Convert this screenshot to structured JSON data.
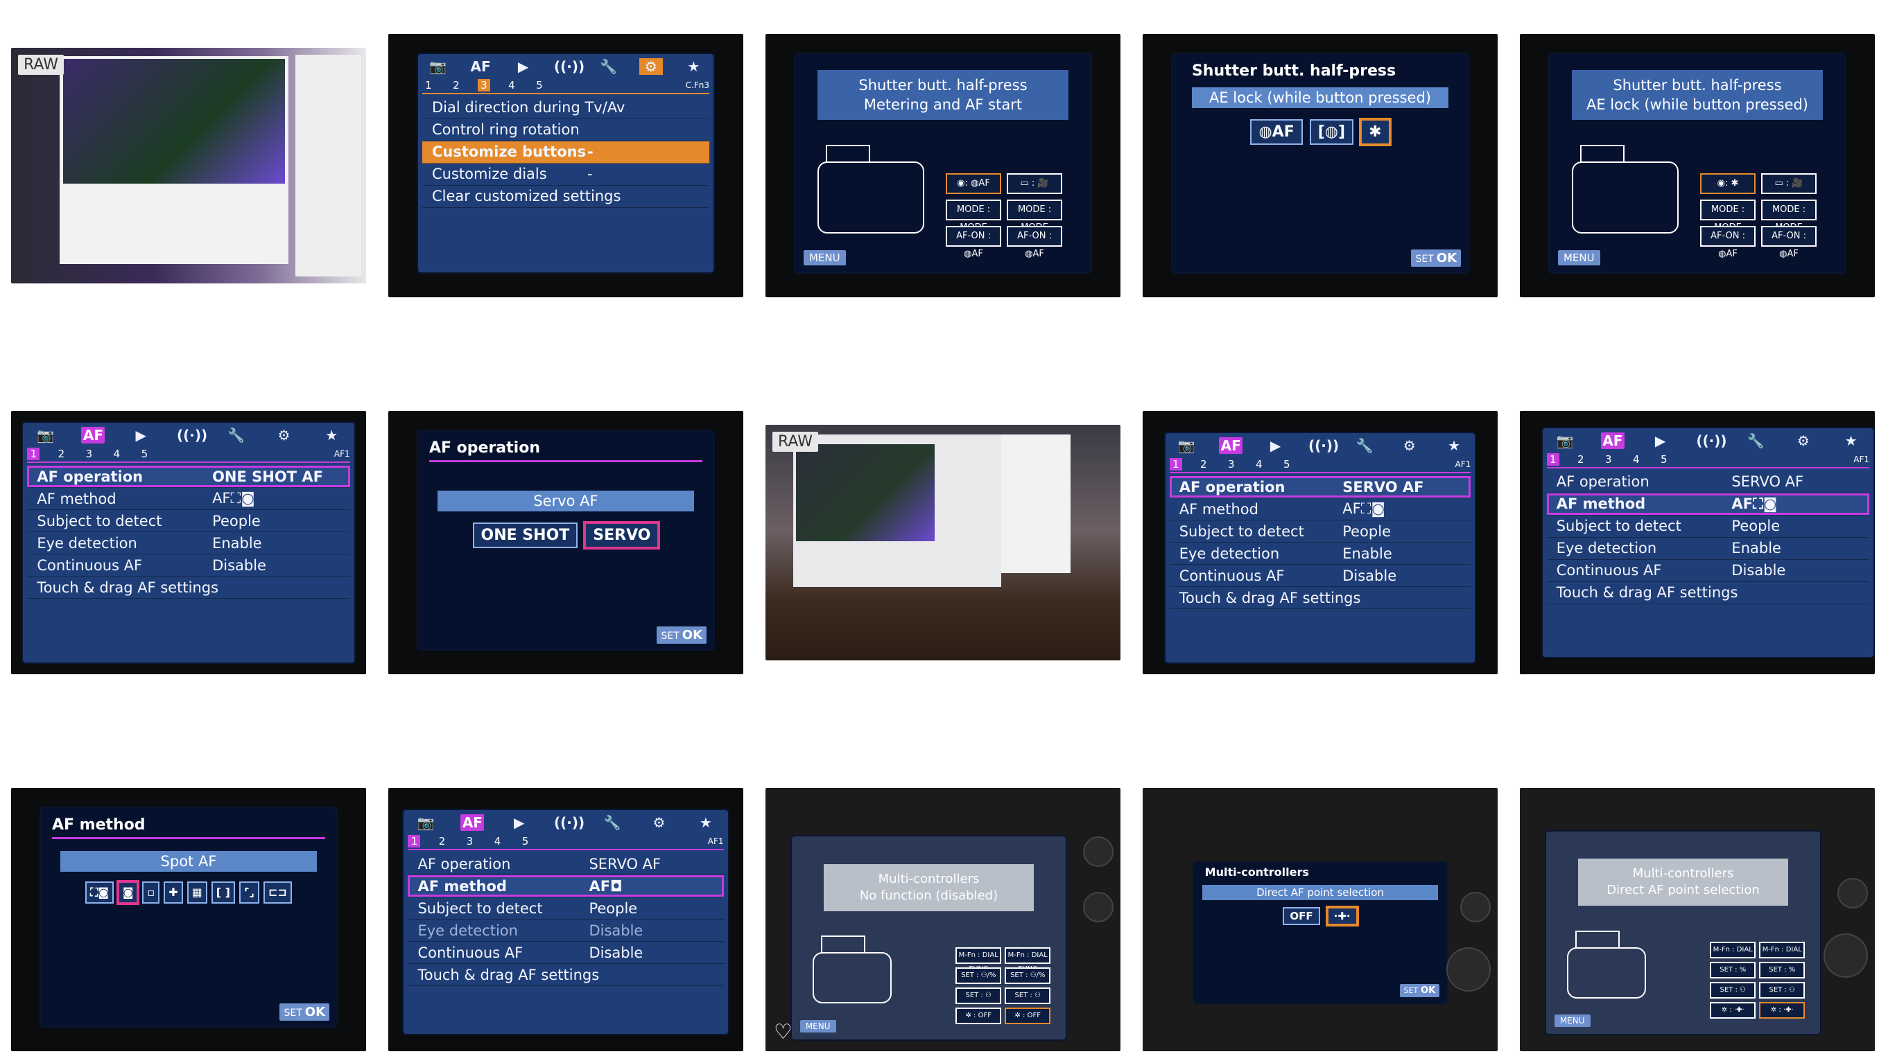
{
  "tiles": {
    "t1": {
      "badge": "RAW"
    },
    "t2": {
      "tabs": [
        "📷",
        "AF",
        "▶",
        "((·))",
        "🔧",
        "⚙",
        "★"
      ],
      "subtabs": [
        "1",
        "2",
        "3",
        "4",
        "5"
      ],
      "code": "C.Fn3",
      "rows": [
        "Dial direction during Tv/Av",
        "Control ring rotation",
        "Customize buttons",
        "Customize dials",
        "Clear customized settings"
      ],
      "row_values": [
        "",
        "",
        "-",
        "-",
        ""
      ]
    },
    "t3": {
      "banner_l1": "Shutter butt. half-press",
      "banner_l2": "Metering and AF start",
      "menu": "MENU",
      "cells": [
        "◉: ◍AF",
        "▭ : 🎥",
        "MODE : MODE",
        "MODE : MODE",
        "AF-ON : ◍AF",
        "AF-ON : ◍AF"
      ]
    },
    "t4": {
      "title": "Shutter butt. half-press",
      "value": "AE lock (while button pressed)",
      "opts": [
        "◍AF",
        "[◍]",
        "✱"
      ],
      "set": "SET",
      "ok": "OK"
    },
    "t5": {
      "banner_l1": "Shutter butt. half-press",
      "banner_l2": "AE lock (while button pressed)",
      "menu": "MENU",
      "cells": [
        "◉: ✱",
        "▭ : 🎥",
        "MODE : MODE",
        "MODE : MODE",
        "AF-ON : ◍AF",
        "AF-ON : ◍AF"
      ]
    },
    "af_tabs": [
      "📷",
      "AF",
      "▶",
      "((·))",
      "🔧",
      "⚙",
      "★"
    ],
    "af_sub": [
      "1",
      "2",
      "3",
      "4",
      "5"
    ],
    "af_code": "AF1",
    "t6": {
      "rows": [
        [
          "AF operation",
          "ONE SHOT AF"
        ],
        [
          "AF method",
          "AF⛶◙"
        ],
        [
          "Subject to detect",
          "People"
        ],
        [
          "Eye detection",
          "Enable"
        ],
        [
          "Continuous AF",
          "Disable"
        ],
        [
          "Touch & drag AF settings",
          ""
        ]
      ]
    },
    "t7": {
      "title": "AF operation",
      "value": "Servo AF",
      "opts": [
        "ONE SHOT",
        "SERVO"
      ],
      "set": "SET",
      "ok": "OK"
    },
    "t8": {
      "badge": "RAW"
    },
    "t9": {
      "rows": [
        [
          "AF operation",
          "SERVO AF"
        ],
        [
          "AF method",
          "AF⛶◙"
        ],
        [
          "Subject to detect",
          "People"
        ],
        [
          "Eye detection",
          "Enable"
        ],
        [
          "Continuous AF",
          "Disable"
        ],
        [
          "Touch & drag AF settings",
          ""
        ]
      ]
    },
    "t10": {
      "rows": [
        [
          "AF operation",
          "SERVO AF"
        ],
        [
          "AF method",
          "AF⛶◙"
        ],
        [
          "Subject to detect",
          "People"
        ],
        [
          "Eye detection",
          "Enable"
        ],
        [
          "Continuous AF",
          "Disable"
        ],
        [
          "Touch & drag AF settings",
          ""
        ]
      ]
    },
    "t11": {
      "title": "AF method",
      "value": "Spot AF",
      "opts": [
        "⛶◙",
        "◙",
        "▫",
        "✚",
        "▦",
        "[ ]",
        "⌜⌟",
        "⊏⊐"
      ],
      "set": "SET",
      "ok": "OK"
    },
    "t12": {
      "rows": [
        [
          "AF operation",
          "SERVO AF"
        ],
        [
          "AF method",
          "AF◘"
        ],
        [
          "Subject to detect",
          "People"
        ],
        [
          "Eye detection",
          "Disable"
        ],
        [
          "Continuous AF",
          "Disable"
        ],
        [
          "Touch & drag AF settings",
          ""
        ]
      ]
    },
    "t13": {
      "banner_l1": "Multi-controllers",
      "banner_l2": "No function (disabled)",
      "menu": "MENU",
      "cells": [
        "M-Fn : DIAL FUNC",
        "M-Fn : DIAL FUNC",
        "SET : ⚇/%",
        "SET : ⚇/%",
        "SET : ⚇",
        "SET : ⚇",
        "✲ : OFF",
        "✲ : OFF"
      ]
    },
    "t14": {
      "title": "Multi-controllers",
      "value": "Direct AF point selection",
      "opts": [
        "OFF",
        "·✚·"
      ],
      "set": "SET",
      "ok": "OK"
    },
    "t15": {
      "banner_l1": "Multi-controllers",
      "banner_l2": "Direct AF point selection",
      "menu": "MENU",
      "cells": [
        "M-Fn : DIAL",
        "M-Fn : DIAL",
        "SET : %",
        "SET : %",
        "SET : ⚇",
        "SET : ⚇",
        "✲ : ·✚·",
        "✲ : ·✚·"
      ]
    }
  }
}
